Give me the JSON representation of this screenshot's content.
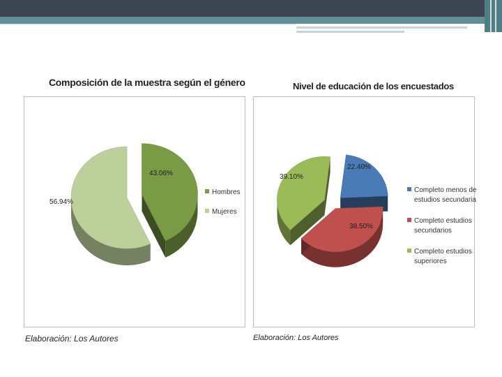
{
  "colors": {
    "hombres": "#7a9a45",
    "mujeres": "#bdd09b",
    "secundaria_menos": "#4a7bb7",
    "secundarios": "#c0504d",
    "superiores": "#9bbb59"
  },
  "chart_data": [
    {
      "type": "pie",
      "title": "Composición de la muestra según el género",
      "categories": [
        "Hombres",
        "Mujeres"
      ],
      "values": [
        43.06,
        56.94
      ],
      "data_labels": [
        "43.06%",
        "56.94%"
      ],
      "legend": [
        "Hombres",
        "Mujeres"
      ],
      "legend_position": "right",
      "footer": "Elaboración: Los Autores"
    },
    {
      "type": "pie",
      "title": "Nivel de educación de los encuestados",
      "categories": [
        "Completo menos de estudios secundaria",
        "Completo estudios secundarios",
        "Completo estudios superiores"
      ],
      "values": [
        22.4,
        38.5,
        39.1
      ],
      "data_labels": [
        "22.40%",
        "38.50%",
        "39.10%"
      ],
      "legend": [
        [
          "Completo menos de",
          "estudios secundaria"
        ],
        [
          "Completo estudios",
          "secundarios"
        ],
        [
          "Completo estudios",
          "superiores"
        ]
      ],
      "legend_position": "right",
      "footer": "Elaboración: Los Autores"
    }
  ]
}
